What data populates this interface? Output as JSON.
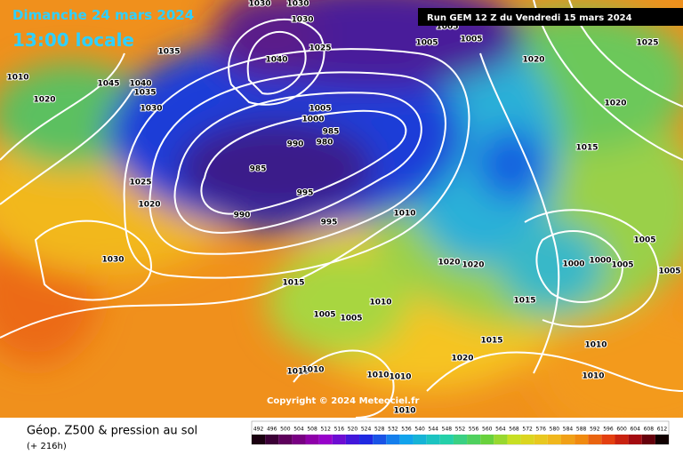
{
  "header": {
    "date": "Dimanche 24 mars 2024",
    "time": "13:00 locale",
    "run": "Run GEM 12 Z du Vendredi 15 mars 2024"
  },
  "map": {
    "copyright": "Copyright © 2024 Meteociel.fr",
    "isobar_labels": [
      1030,
      1030,
      1030,
      1040,
      1025,
      1035,
      1045,
      1040,
      1035,
      1030,
      1005,
      1005,
      1005,
      1020,
      1025,
      1020,
      1015,
      1005,
      1000,
      985,
      980,
      990,
      985,
      995,
      990,
      995,
      1025,
      1020,
      1010,
      1030,
      1015,
      1020,
      1020,
      1000,
      1000,
      1005,
      1005,
      1005,
      1015,
      1010,
      1005,
      1005,
      1015,
      1010,
      1010,
      1010,
      1020,
      1010,
      1010,
      1010,
      1010,
      1010,
      1020
    ]
  },
  "legend": {
    "title": "Géop. Z500 & pression au sol",
    "lead": "(+ 216h)",
    "scale": [
      492,
      496,
      500,
      504,
      508,
      512,
      516,
      520,
      524,
      528,
      532,
      536,
      540,
      544,
      548,
      552,
      556,
      560,
      564,
      568,
      572,
      576,
      580,
      584,
      588,
      592,
      596,
      600,
      604,
      608,
      612
    ]
  }
}
